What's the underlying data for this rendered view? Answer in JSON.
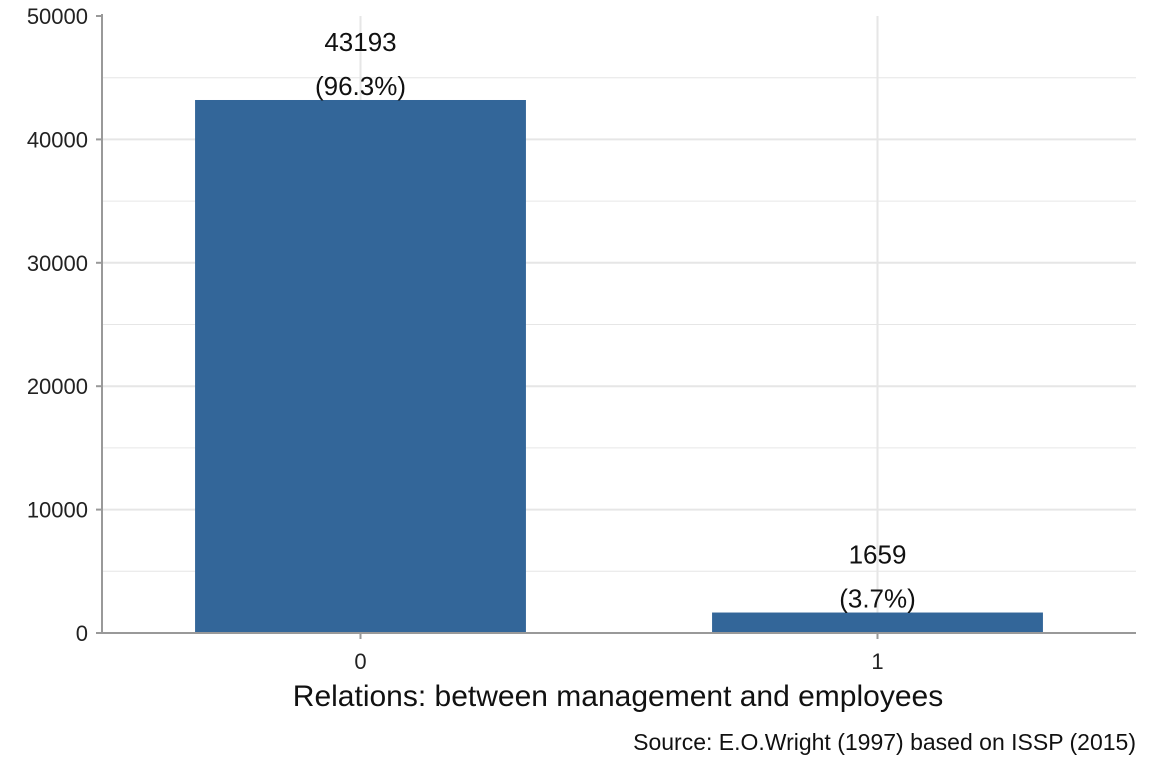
{
  "chart_data": {
    "type": "bar",
    "categories": [
      "0",
      "1"
    ],
    "values": [
      43193,
      1659
    ],
    "value_labels": [
      "43193",
      "1659"
    ],
    "percent_labels": [
      "(96.3%)",
      "(3.7%)"
    ],
    "title": "",
    "xlabel": "Relations: between management and employees",
    "ylabel": "",
    "ylim": [
      0,
      50000
    ],
    "yticks": [
      0,
      10000,
      20000,
      30000,
      40000,
      50000
    ],
    "ytick_labels": [
      "0",
      "10000",
      "20000",
      "30000",
      "40000",
      "50000"
    ],
    "grid": true,
    "bar_color": "#336699",
    "grid_color": "#e6e6e6",
    "axis_color": "#999999"
  },
  "source": "Source: E.O.Wright (1997) based on ISSP (2015)"
}
